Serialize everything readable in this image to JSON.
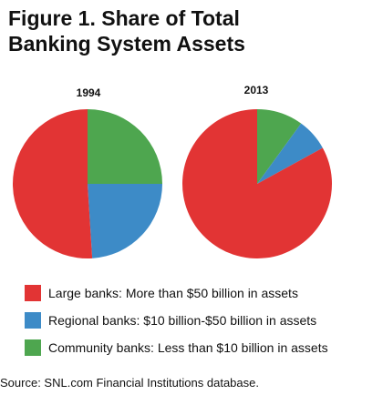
{
  "title_line1": "Figure 1. Share of Total",
  "title_line2": "Banking System Assets",
  "source": "Source: SNL.com Financial Institutions database.",
  "chart_data": {
    "type": "pie",
    "pies": [
      {
        "label": "1994",
        "slices": [
          {
            "category": "Community banks: Less than $10 billion in assets",
            "share": 25,
            "color": "#4ea64f"
          },
          {
            "category": "Regional banks: $10 billion-$50 billion in assets",
            "share": 24,
            "color": "#3d8bc7"
          },
          {
            "category": "Large banks: More than $50 billion in assets",
            "share": 51,
            "color": "#e23434"
          }
        ]
      },
      {
        "label": "2013",
        "slices": [
          {
            "category": "Community banks: Less than $10 billion in assets",
            "share": 10,
            "color": "#4ea64f"
          },
          {
            "category": "Regional banks: $10 billion-$50 billion in assets",
            "share": 7,
            "color": "#3d8bc7"
          },
          {
            "category": "Large banks: More than $50 billion in assets",
            "share": 83,
            "color": "#e23434"
          }
        ]
      }
    ],
    "legend": [
      {
        "label": "Large banks: More than $50 billion in assets",
        "color": "#e23434"
      },
      {
        "label": "Regional banks: $10 billion-$50 billion in assets",
        "color": "#3d8bc7"
      },
      {
        "label": "Community banks: Less than $10 billion in assets",
        "color": "#4ea64f"
      }
    ],
    "legend_position": "bottom"
  }
}
